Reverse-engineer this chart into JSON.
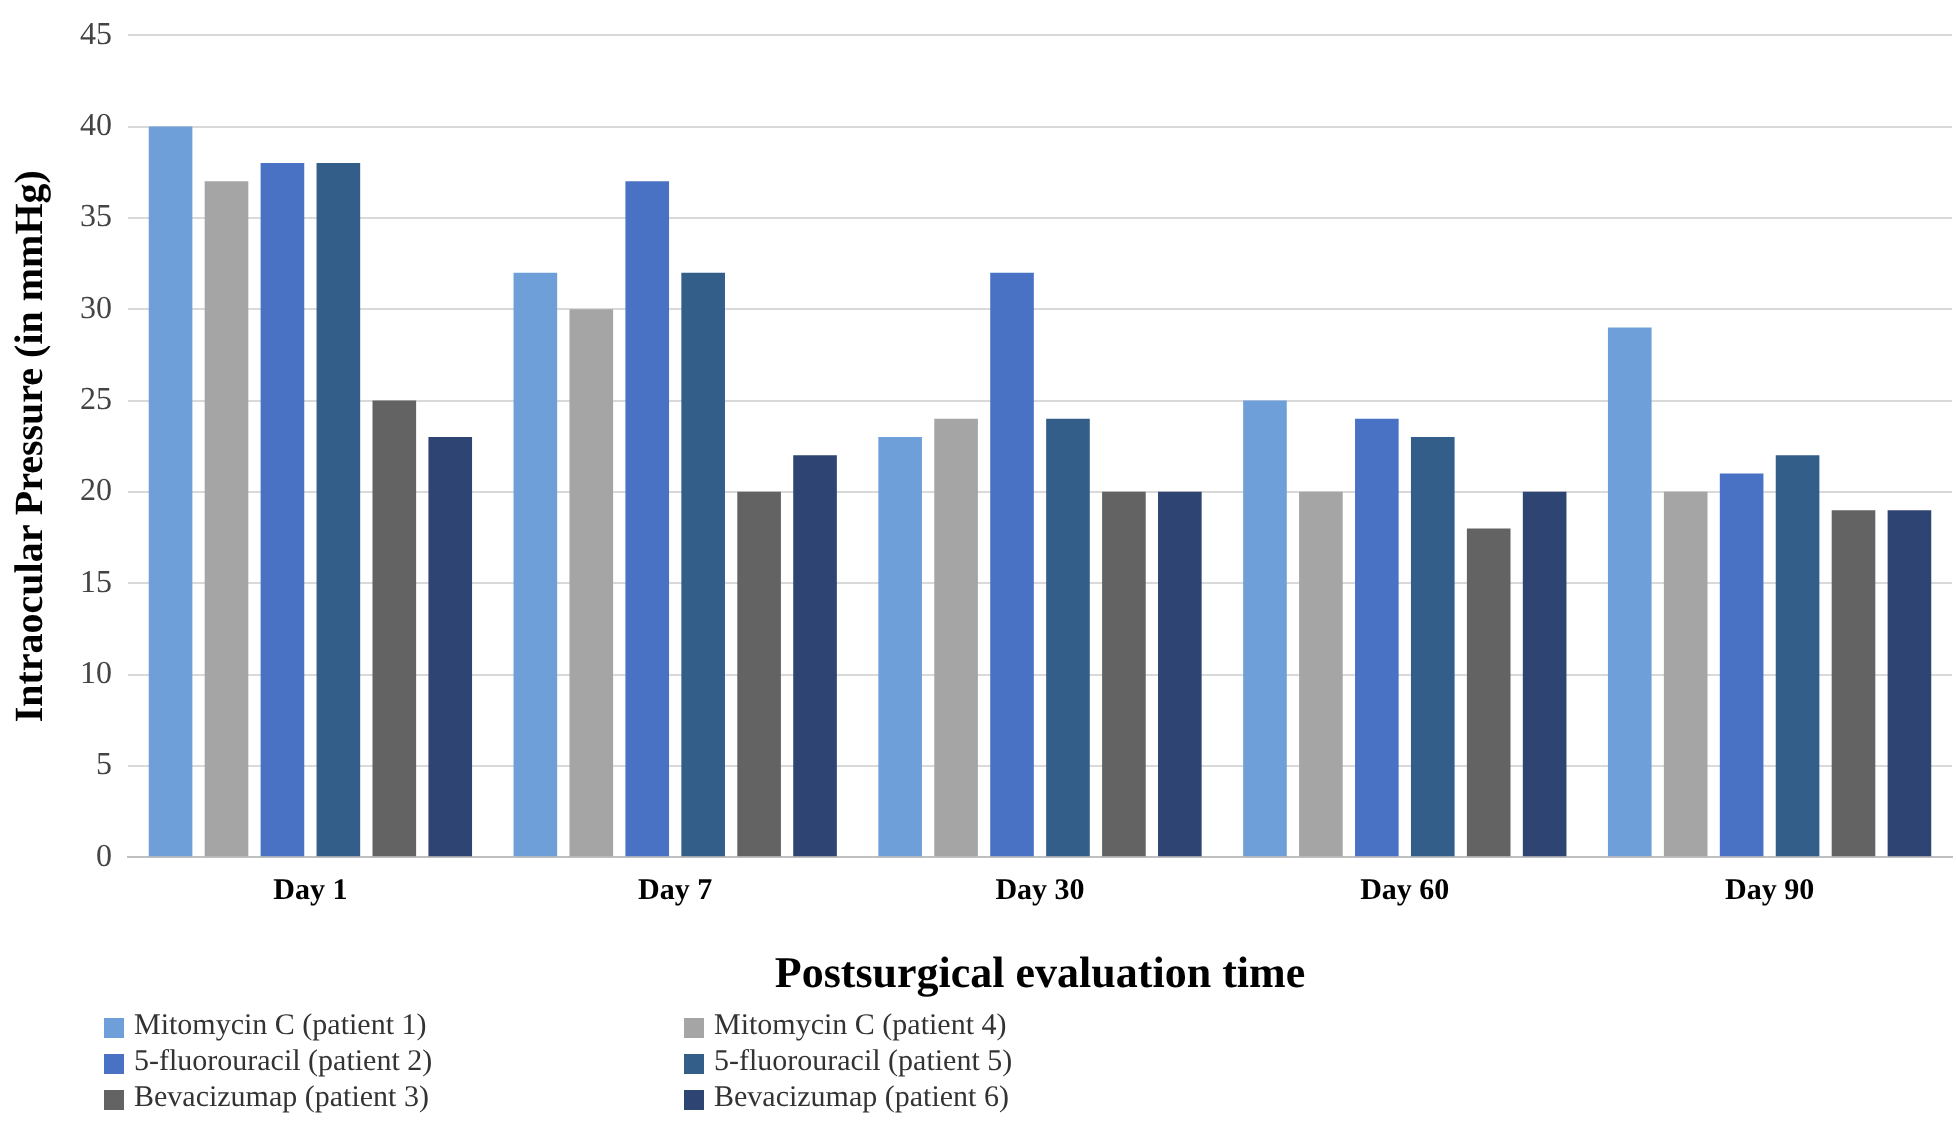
{
  "chart_data": {
    "type": "bar",
    "xlabel": "Postsurgical evaluation time",
    "ylabel": "Intraocular Pressure (in mmHg)",
    "categories": [
      "Day 1",
      "Day 7",
      "Day 30",
      "Day 60",
      "Day 90"
    ],
    "series": [
      {
        "name": "Mitomycin C (patient 1)",
        "color": "#6f9fd8",
        "values": [
          40,
          32,
          23,
          25,
          29
        ]
      },
      {
        "name": "Mitomycin C (patient 4)",
        "color": "#a5a5a5",
        "values": [
          37,
          30,
          24,
          20,
          20
        ]
      },
      {
        "name": "5-fluorouracil (patient 2)",
        "color": "#4a72c4",
        "values": [
          38,
          37,
          32,
          24,
          21
        ]
      },
      {
        "name": "5-fluorouracil (patient 5)",
        "color": "#335e8a",
        "values": [
          38,
          32,
          24,
          23,
          22
        ]
      },
      {
        "name": "Bevacizumap (patient 3)",
        "color": "#636363",
        "values": [
          25,
          20,
          20,
          18,
          19
        ]
      },
      {
        "name": "Bevacizumap (patient 6)",
        "color": "#2e4472",
        "values": [
          23,
          22,
          20,
          20,
          19
        ]
      }
    ],
    "ylim": [
      0,
      45
    ],
    "yticks": [
      0,
      5,
      10,
      15,
      20,
      25,
      30,
      35,
      40,
      45
    ],
    "grid": "y",
    "legend": "bottom"
  }
}
